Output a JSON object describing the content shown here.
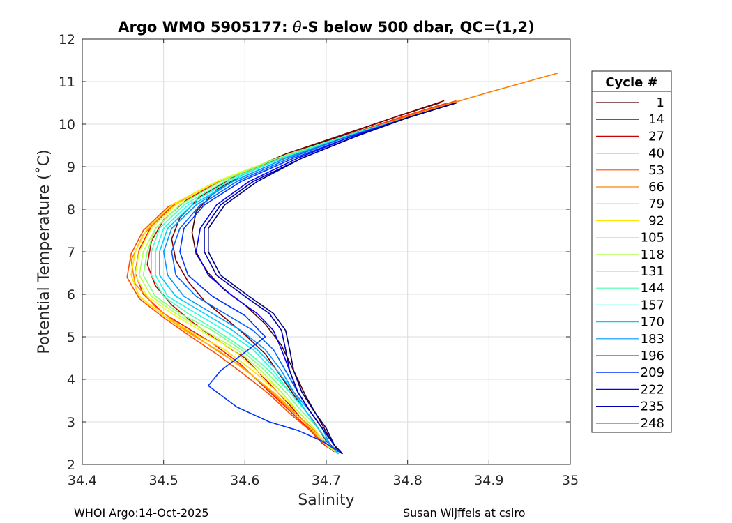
{
  "chart_data": {
    "type": "line",
    "title_prefix": "Argo WMO 5905177: ",
    "title_symbol": "θ",
    "title_suffix": "-S below 500 dbar,  QC=(1,2)",
    "xlabel": "Salinity",
    "ylabel": "Potential Temperature (˚C)",
    "xlim": [
      34.4,
      35
    ],
    "ylim": [
      2,
      12
    ],
    "xticks": [
      34.4,
      34.5,
      34.6,
      34.7,
      34.8,
      34.9,
      35
    ],
    "xtick_labels": [
      "34.4",
      "34.5",
      "34.6",
      "34.7",
      "34.8",
      "34.9",
      "35"
    ],
    "yticks": [
      2,
      3,
      4,
      5,
      6,
      7,
      8,
      9,
      10,
      11,
      12
    ],
    "ytick_labels": [
      "2",
      "3",
      "4",
      "5",
      "6",
      "7",
      "8",
      "9",
      "10",
      "11",
      "12"
    ],
    "grid": true,
    "legend_title": "Cycle #",
    "legend_position": "outside-right",
    "colormap": "jet",
    "series": [
      {
        "name": "1",
        "color": "#4d0000",
        "salinity": [
          34.84,
          34.79,
          34.73,
          34.67,
          34.61,
          34.565,
          34.54,
          34.535,
          34.54,
          34.555,
          34.575,
          34.6,
          34.625,
          34.645,
          34.66,
          34.675,
          34.69,
          34.705,
          34.715
        ],
        "theta": [
          10.5,
          10.2,
          9.8,
          9.4,
          8.95,
          8.45,
          7.95,
          7.45,
          6.95,
          6.5,
          6.1,
          5.75,
          5.3,
          4.8,
          4.2,
          3.6,
          3.1,
          2.6,
          2.3
        ]
      },
      {
        "name": "14",
        "color": "#800000",
        "salinity": [
          34.845,
          34.79,
          34.72,
          34.65,
          34.59,
          34.545,
          34.52,
          34.51,
          34.515,
          34.53,
          34.55,
          34.575,
          34.6,
          34.625,
          34.645,
          34.665,
          34.685,
          34.7,
          34.715
        ],
        "theta": [
          10.55,
          10.2,
          9.75,
          9.3,
          8.8,
          8.3,
          7.8,
          7.3,
          6.8,
          6.3,
          5.85,
          5.45,
          5.05,
          4.6,
          4.05,
          3.5,
          3.0,
          2.55,
          2.3
        ]
      },
      {
        "name": "27",
        "color": "#cc0000",
        "salinity": [
          34.85,
          34.79,
          34.72,
          34.65,
          34.58,
          34.53,
          34.5,
          34.485,
          34.48,
          34.49,
          34.51,
          34.535,
          34.56,
          34.6,
          34.63,
          34.655,
          34.675,
          34.695,
          34.71
        ],
        "theta": [
          10.5,
          10.15,
          9.7,
          9.25,
          8.75,
          8.25,
          7.75,
          7.25,
          6.7,
          6.2,
          5.75,
          5.35,
          5.0,
          4.5,
          3.9,
          3.4,
          2.95,
          2.5,
          2.3
        ]
      },
      {
        "name": "40",
        "color": "#ff1a00",
        "salinity": [
          34.85,
          34.79,
          34.72,
          34.64,
          34.57,
          34.515,
          34.485,
          34.47,
          34.465,
          34.475,
          34.5,
          34.53,
          34.56,
          34.595,
          34.625,
          34.65,
          34.675,
          34.695,
          34.71
        ],
        "theta": [
          10.5,
          10.15,
          9.7,
          9.2,
          8.65,
          8.15,
          7.6,
          7.05,
          6.5,
          6.0,
          5.55,
          5.2,
          4.85,
          4.35,
          3.8,
          3.35,
          2.9,
          2.5,
          2.3
        ]
      },
      {
        "name": "53",
        "color": "#ff4d00",
        "salinity": [
          34.86,
          34.8,
          34.72,
          34.64,
          34.56,
          34.505,
          34.475,
          34.46,
          34.455,
          34.47,
          34.5,
          34.53,
          34.565,
          34.6,
          34.63,
          34.655,
          34.68,
          34.7,
          34.715
        ],
        "theta": [
          10.55,
          10.2,
          9.7,
          9.15,
          8.6,
          8.05,
          7.5,
          6.95,
          6.4,
          5.9,
          5.45,
          5.05,
          4.6,
          4.1,
          3.65,
          3.2,
          2.8,
          2.45,
          2.25
        ]
      },
      {
        "name": "66",
        "color": "#ff8000",
        "salinity": [
          34.985,
          34.9,
          34.82,
          34.73,
          34.64,
          34.56,
          34.505,
          34.475,
          34.46,
          34.465,
          34.49,
          34.525,
          34.56,
          34.6,
          34.63,
          34.655,
          34.68,
          34.7,
          34.715
        ],
        "theta": [
          11.2,
          10.75,
          10.3,
          9.75,
          9.2,
          8.6,
          8.0,
          7.4,
          6.8,
          6.25,
          5.7,
          5.2,
          4.75,
          4.25,
          3.75,
          3.3,
          2.9,
          2.5,
          2.25
        ]
      },
      {
        "name": "79",
        "color": "#ffb300",
        "salinity": [
          34.86,
          34.8,
          34.72,
          34.64,
          34.565,
          34.51,
          34.48,
          34.465,
          34.46,
          34.47,
          34.5,
          34.53,
          34.57,
          34.605,
          34.635,
          34.66,
          34.68,
          34.7,
          34.715
        ],
        "theta": [
          10.5,
          10.15,
          9.7,
          9.2,
          8.65,
          8.1,
          7.55,
          7.0,
          6.45,
          5.95,
          5.5,
          5.1,
          4.65,
          4.15,
          3.7,
          3.25,
          2.85,
          2.45,
          2.25
        ]
      },
      {
        "name": "92",
        "color": "#ffe600",
        "salinity": [
          34.86,
          34.8,
          34.72,
          34.64,
          34.565,
          34.51,
          34.48,
          34.465,
          34.46,
          34.47,
          34.5,
          34.535,
          34.575,
          34.61,
          34.64,
          34.665,
          34.685,
          34.7,
          34.715
        ],
        "theta": [
          10.5,
          10.15,
          9.7,
          9.2,
          8.65,
          8.1,
          7.55,
          7.0,
          6.45,
          5.95,
          5.5,
          5.1,
          4.7,
          4.2,
          3.7,
          3.25,
          2.85,
          2.45,
          2.25
        ]
      },
      {
        "name": "105",
        "color": "#e6ff1a",
        "salinity": [
          34.86,
          34.8,
          34.72,
          34.64,
          34.565,
          34.515,
          34.485,
          34.47,
          34.465,
          34.48,
          34.51,
          34.545,
          34.585,
          34.615,
          34.645,
          34.665,
          34.685,
          34.7,
          34.715
        ],
        "theta": [
          10.5,
          10.15,
          9.7,
          9.2,
          8.65,
          8.1,
          7.55,
          7.0,
          6.45,
          5.95,
          5.55,
          5.15,
          4.7,
          4.2,
          3.7,
          3.25,
          2.85,
          2.45,
          2.25
        ]
      },
      {
        "name": "118",
        "color": "#b3ff4d",
        "salinity": [
          34.86,
          34.8,
          34.72,
          34.64,
          34.57,
          34.52,
          34.49,
          34.475,
          34.47,
          34.485,
          34.515,
          34.55,
          34.59,
          34.62,
          34.645,
          34.665,
          34.685,
          34.7,
          34.715
        ],
        "theta": [
          10.5,
          10.15,
          9.7,
          9.2,
          8.65,
          8.1,
          7.55,
          7.0,
          6.45,
          5.95,
          5.55,
          5.15,
          4.7,
          4.2,
          3.7,
          3.25,
          2.85,
          2.45,
          2.25
        ]
      },
      {
        "name": "131",
        "color": "#80ff80",
        "salinity": [
          34.86,
          34.8,
          34.72,
          34.64,
          34.57,
          34.52,
          34.49,
          34.48,
          34.475,
          34.49,
          34.52,
          34.56,
          34.595,
          34.625,
          34.65,
          34.67,
          34.69,
          34.705,
          34.715
        ],
        "theta": [
          10.5,
          10.15,
          9.7,
          9.2,
          8.65,
          8.1,
          7.55,
          7.0,
          6.45,
          5.95,
          5.55,
          5.15,
          4.7,
          4.2,
          3.7,
          3.25,
          2.85,
          2.45,
          2.25
        ]
      },
      {
        "name": "144",
        "color": "#4dffb3",
        "salinity": [
          34.86,
          34.8,
          34.72,
          34.645,
          34.575,
          34.525,
          34.495,
          34.485,
          34.485,
          34.5,
          34.53,
          34.565,
          34.6,
          34.63,
          34.655,
          34.675,
          34.69,
          34.705,
          34.715
        ],
        "theta": [
          10.5,
          10.15,
          9.7,
          9.2,
          8.65,
          8.1,
          7.55,
          7.0,
          6.45,
          5.95,
          5.55,
          5.15,
          4.7,
          4.2,
          3.7,
          3.25,
          2.85,
          2.45,
          2.25
        ]
      },
      {
        "name": "157",
        "color": "#1affe6",
        "salinity": [
          34.86,
          34.8,
          34.72,
          34.645,
          34.58,
          34.53,
          34.5,
          34.49,
          34.49,
          34.505,
          34.54,
          34.575,
          34.61,
          34.635,
          34.655,
          34.675,
          34.69,
          34.705,
          34.715
        ],
        "theta": [
          10.5,
          10.15,
          9.7,
          9.2,
          8.65,
          8.1,
          7.55,
          7.0,
          6.45,
          5.95,
          5.55,
          5.15,
          4.7,
          4.2,
          3.7,
          3.25,
          2.85,
          2.45,
          2.25
        ]
      },
      {
        "name": "170",
        "color": "#00ccff",
        "salinity": [
          34.86,
          34.8,
          34.725,
          34.65,
          34.585,
          34.535,
          34.505,
          34.495,
          34.495,
          34.515,
          34.55,
          34.585,
          34.615,
          34.64,
          34.66,
          34.675,
          34.69,
          34.705,
          34.715
        ],
        "theta": [
          10.5,
          10.15,
          9.7,
          9.2,
          8.65,
          8.1,
          7.55,
          7.0,
          6.45,
          5.95,
          5.55,
          5.15,
          4.7,
          4.2,
          3.7,
          3.25,
          2.85,
          2.45,
          2.25
        ]
      },
      {
        "name": "183",
        "color": "#0099ff",
        "salinity": [
          34.86,
          34.8,
          34.725,
          34.65,
          34.585,
          34.54,
          34.51,
          34.5,
          34.505,
          34.525,
          34.56,
          34.595,
          34.625,
          34.645,
          34.66,
          34.68,
          34.695,
          34.705,
          34.72
        ],
        "theta": [
          10.5,
          10.15,
          9.7,
          9.2,
          8.65,
          8.1,
          7.55,
          7.0,
          6.45,
          5.95,
          5.55,
          5.15,
          4.7,
          4.2,
          3.7,
          3.25,
          2.85,
          2.45,
          2.25
        ]
      },
      {
        "name": "196",
        "color": "#0066ff",
        "salinity": [
          34.86,
          34.8,
          34.725,
          34.655,
          34.59,
          34.545,
          34.52,
          34.51,
          34.515,
          34.54,
          34.575,
          34.61,
          34.635,
          34.65,
          34.665,
          34.68,
          34.695,
          34.71,
          34.72
        ],
        "theta": [
          10.5,
          10.15,
          9.7,
          9.2,
          8.65,
          8.1,
          7.55,
          7.0,
          6.45,
          5.95,
          5.55,
          5.15,
          4.7,
          4.2,
          3.7,
          3.25,
          2.85,
          2.45,
          2.25
        ]
      },
      {
        "name": "209",
        "color": "#0033ff",
        "salinity": [
          34.86,
          34.8,
          34.73,
          34.66,
          34.595,
          34.55,
          34.525,
          34.52,
          34.53,
          34.56,
          34.6,
          34.625,
          34.57,
          34.555,
          34.59,
          34.63,
          34.665,
          34.695,
          34.72
        ],
        "theta": [
          10.5,
          10.15,
          9.7,
          9.2,
          8.65,
          8.1,
          7.55,
          7.0,
          6.45,
          5.95,
          5.5,
          5.0,
          4.2,
          3.85,
          3.35,
          3.0,
          2.8,
          2.55,
          2.25
        ]
      },
      {
        "name": "222",
        "color": "#0000ff",
        "salinity": [
          34.86,
          34.8,
          34.73,
          34.665,
          34.605,
          34.565,
          34.545,
          34.54,
          34.555,
          34.585,
          34.615,
          34.635,
          34.645,
          34.655,
          34.665,
          34.68,
          34.695,
          34.71,
          34.72
        ],
        "theta": [
          10.5,
          10.15,
          9.7,
          9.2,
          8.65,
          8.1,
          7.55,
          7.0,
          6.45,
          5.95,
          5.55,
          5.15,
          4.7,
          4.2,
          3.7,
          3.25,
          2.85,
          2.45,
          2.25
        ]
      },
      {
        "name": "235",
        "color": "#0000b3",
        "salinity": [
          34.86,
          34.8,
          34.735,
          34.67,
          34.61,
          34.57,
          34.55,
          34.55,
          34.565,
          34.6,
          34.63,
          34.645,
          34.65,
          34.655,
          34.665,
          34.68,
          34.695,
          34.71,
          34.72
        ],
        "theta": [
          10.5,
          10.15,
          9.7,
          9.2,
          8.65,
          8.1,
          7.55,
          7.0,
          6.45,
          5.95,
          5.55,
          5.15,
          4.7,
          4.2,
          3.7,
          3.25,
          2.85,
          2.45,
          2.25
        ]
      },
      {
        "name": "248",
        "color": "#000080",
        "salinity": [
          34.86,
          34.8,
          34.735,
          34.67,
          34.615,
          34.575,
          34.555,
          34.555,
          34.57,
          34.605,
          34.635,
          34.65,
          34.655,
          34.66,
          34.67,
          34.685,
          34.7,
          34.71,
          34.72
        ],
        "theta": [
          10.5,
          10.15,
          9.7,
          9.2,
          8.65,
          8.1,
          7.55,
          7.0,
          6.45,
          5.95,
          5.55,
          5.15,
          4.7,
          4.2,
          3.7,
          3.25,
          2.85,
          2.45,
          2.25
        ]
      }
    ]
  },
  "footer": {
    "left": "WHOI Argo:14-Oct-2025",
    "right": "Susan Wijffels at csiro"
  }
}
